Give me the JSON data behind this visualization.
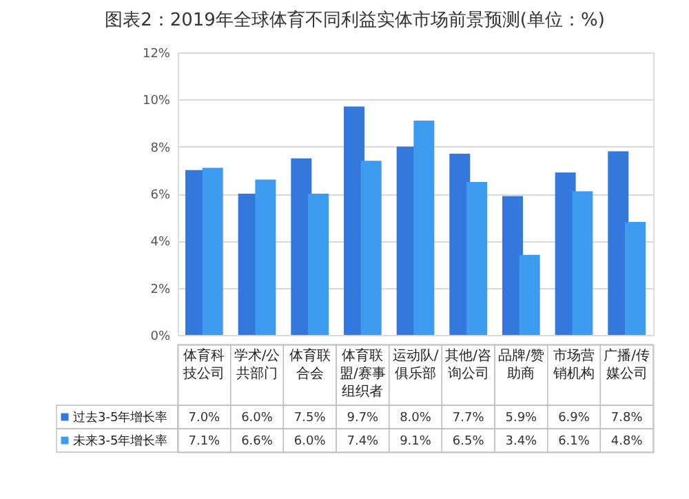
{
  "chart_data": {
    "type": "bar",
    "title": "图表2：2019年全球体育不同利益实体市场前景预测(单位：%)",
    "categories": [
      "体育科技公司",
      "学术/公共部门",
      "体育联合会",
      "体育联盟/赛事组织者",
      "运动队/俱乐部",
      "其他/咨询公司",
      "品牌/赞助商",
      "市场营销机构",
      "广播/传媒公司"
    ],
    "series": [
      {
        "name": "过去3-5年增长率",
        "color": "#3478dc",
        "values": [
          7.0,
          6.0,
          7.5,
          9.7,
          8.0,
          7.7,
          5.9,
          6.9,
          7.8
        ],
        "value_labels": [
          "7.0%",
          "6.0%",
          "7.5%",
          "9.7%",
          "8.0%",
          "7.7%",
          "5.9%",
          "6.9%",
          "7.8%"
        ]
      },
      {
        "name": "未来3-5年增长率",
        "color": "#3d9cef",
        "values": [
          7.1,
          6.6,
          6.0,
          7.4,
          9.1,
          6.5,
          3.4,
          6.1,
          4.8
        ],
        "value_labels": [
          "7.1%",
          "6.6%",
          "6.0%",
          "7.4%",
          "9.1%",
          "6.5%",
          "3.4%",
          "6.1%",
          "4.8%"
        ]
      }
    ],
    "ylim": [
      0,
      12
    ],
    "yticks": [
      {
        "value": 0,
        "label": "0%"
      },
      {
        "value": 2,
        "label": "2%"
      },
      {
        "value": 4,
        "label": "4%"
      },
      {
        "value": 6,
        "label": "6%"
      },
      {
        "value": 8,
        "label": "8%"
      },
      {
        "value": 10,
        "label": "10%"
      },
      {
        "value": 12,
        "label": "12%"
      }
    ],
    "grid": "y",
    "legend": "bottom left"
  }
}
